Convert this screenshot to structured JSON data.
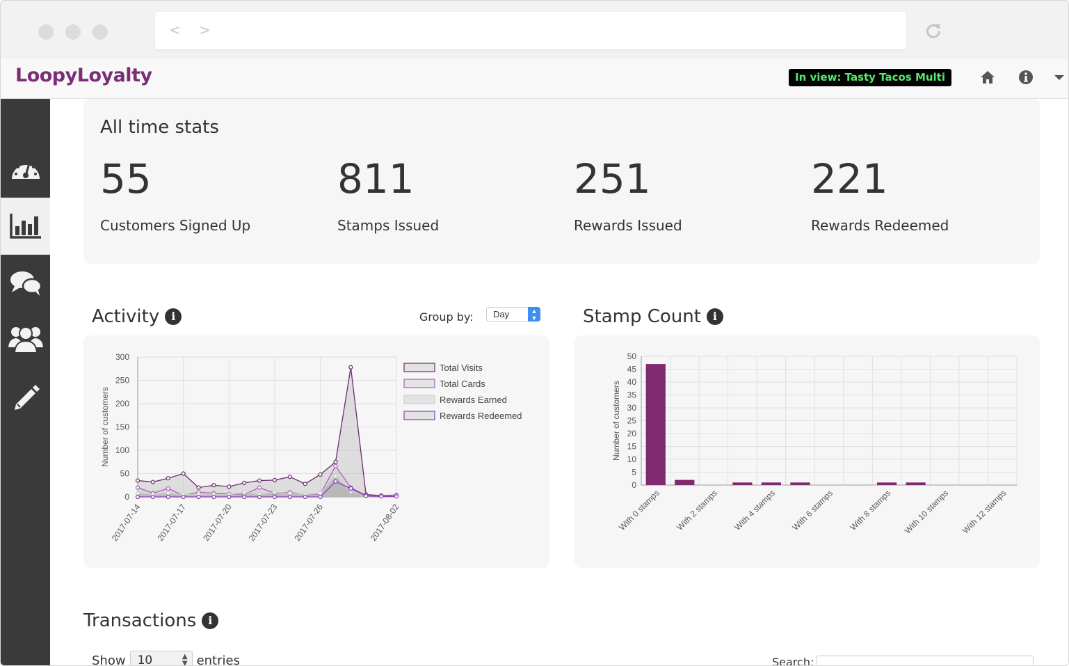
{
  "browser": {
    "nav_arrows": "< >"
  },
  "navbar": {
    "logo_a": "Loopy",
    "logo_b": "Loyalty",
    "in_view": "In view: Tasty Tacos Multi",
    "icons": [
      "home-icon",
      "info-icon",
      "caret-down-icon"
    ]
  },
  "sidebar": {
    "items": [
      {
        "icon": "dashboard-gauge-icon"
      },
      {
        "icon": "bar-chart-icon",
        "active": true
      },
      {
        "icon": "chat-bubbles-icon"
      },
      {
        "icon": "users-group-icon"
      },
      {
        "icon": "pencil-icon"
      }
    ]
  },
  "stats": {
    "title": "All time stats",
    "items": [
      {
        "value": "55",
        "label": "Customers Signed Up"
      },
      {
        "value": "811",
        "label": "Stamps Issued"
      },
      {
        "value": "251",
        "label": "Rewards Issued"
      },
      {
        "value": "221",
        "label": "Rewards Redeemed"
      }
    ]
  },
  "activity": {
    "title": "Activity",
    "group_by_label": "Group by:",
    "group_by_value": "Day"
  },
  "stamp_count": {
    "title": "Stamp Count"
  },
  "transactions": {
    "title": "Transactions",
    "show_label": "Show",
    "show_value": "10",
    "entries_label": "entries",
    "search_label": "Search:"
  },
  "colors": {
    "purple": "#7b2d77",
    "bar": "#7f2a6e",
    "sidebar_bg": "#3a3a3a",
    "in_view_text": "#55e86a"
  },
  "chart_data": [
    {
      "type": "line",
      "ylabel": "Number of customers",
      "ylim": [
        0,
        300
      ],
      "yticks": [
        0,
        50,
        100,
        150,
        200,
        250,
        300
      ],
      "xtick_labels": [
        "2017-07-14",
        "2017-07-17",
        "2017-07-20",
        "2017-07-23",
        "2017-07-26",
        "2017-08-02"
      ],
      "x": [
        "2017-07-14",
        "2017-07-15",
        "2017-07-16",
        "2017-07-17",
        "2017-07-18",
        "2017-07-19",
        "2017-07-20",
        "2017-07-21",
        "2017-07-22",
        "2017-07-23",
        "2017-07-24",
        "2017-07-25",
        "2017-07-26",
        "2017-07-27",
        "2017-07-28",
        "2017-07-29",
        "2017-07-30",
        "2017-07-31"
      ],
      "legend_position": "right",
      "series": [
        {
          "name": "Total Visits",
          "values": [
            35,
            32,
            40,
            50,
            20,
            25,
            22,
            30,
            35,
            36,
            43,
            28,
            48,
            75,
            278,
            5,
            3,
            4
          ]
        },
        {
          "name": "Total Cards",
          "values": [
            20,
            8,
            18,
            3,
            10,
            8,
            6,
            5,
            20,
            8,
            10,
            4,
            6,
            66,
            20,
            3,
            2,
            3
          ]
        },
        {
          "name": "Rewards Earned",
          "values": [
            8,
            5,
            8,
            5,
            5,
            5,
            5,
            10,
            5,
            10,
            8,
            5,
            8,
            45,
            10,
            2,
            1,
            2
          ]
        },
        {
          "name": "Rewards Redeemed",
          "values": [
            0,
            0,
            0,
            0,
            0,
            0,
            0,
            0,
            0,
            0,
            0,
            0,
            0,
            33,
            18,
            2,
            1,
            1
          ]
        }
      ]
    },
    {
      "type": "bar",
      "ylabel": "Number of customers",
      "ylim": [
        0,
        50
      ],
      "yticks": [
        0,
        5,
        10,
        15,
        20,
        25,
        30,
        35,
        40,
        45,
        50
      ],
      "categories": [
        "With 0 stamps",
        "With 1 stamps",
        "With 2 stamps",
        "With 3 stamps",
        "With 4 stamps",
        "With 5 stamps",
        "With 6 stamps",
        "With 7 stamps",
        "With 8 stamps",
        "With 9 stamps",
        "With 10 stamps",
        "With 11 stamps",
        "With 12 stamps"
      ],
      "tick_labels": [
        "With 0 stamps",
        "With 2 stamps",
        "With 4 stamps",
        "With 6 stamps",
        "With 8 stamps",
        "With 10 stamps",
        "With 12 stamps"
      ],
      "values": [
        47,
        2,
        0,
        1,
        1,
        1,
        0,
        0,
        1,
        1,
        0,
        0,
        0
      ]
    }
  ]
}
